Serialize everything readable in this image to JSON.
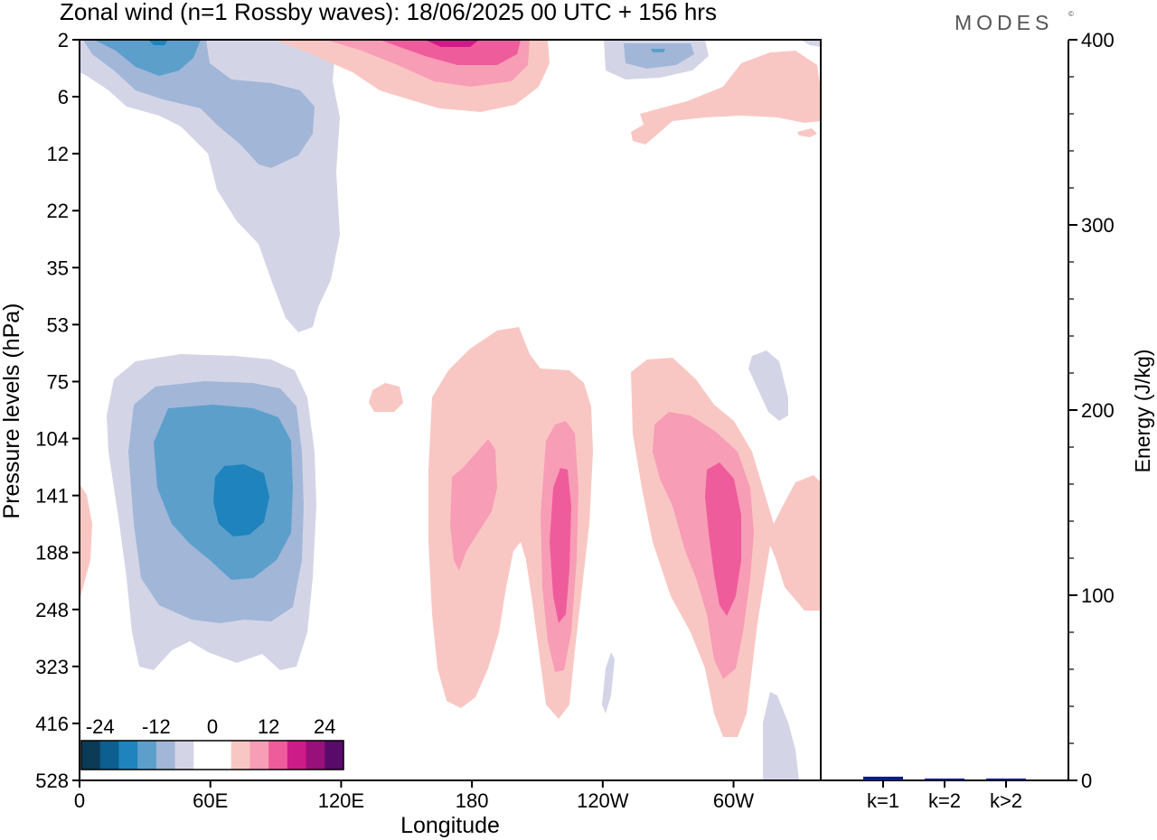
{
  "title": "Zonal wind (n=1 Rossby waves):  18/06/2025  00 UTC  + 156 hrs",
  "brand": "MODES",
  "brand_mark": "©",
  "chart_data": [
    {
      "type": "heatmap",
      "xlabel": "Longitude",
      "ylabel": "Pressure levels (hPa)",
      "x_ticks": [
        {
          "lon": 0,
          "label": "0"
        },
        {
          "lon": 60,
          "label": "60E"
        },
        {
          "lon": 120,
          "label": "120E"
        },
        {
          "lon": 180,
          "label": "180"
        },
        {
          "lon": 240,
          "label": "120W"
        },
        {
          "lon": 300,
          "label": "60W"
        }
      ],
      "xlim": [
        0,
        340
      ],
      "pressure_levels": [
        "2",
        "6",
        "12",
        "22",
        "35",
        "53",
        "75",
        "104",
        "141",
        "188",
        "248",
        "323",
        "416",
        "528"
      ],
      "y_scale": "ordinal pressure levels, 2 hPa at top",
      "colorbar": {
        "tick_labels": [
          "-24",
          "-12",
          "0",
          "12",
          "24"
        ],
        "colors": [
          "#0b3b56",
          "#0d5f8f",
          "#1f83bd",
          "#5c9fcb",
          "#a2b6d8",
          "#d3d5e7",
          "#ffffff",
          "#ffffff",
          "#f9c7c3",
          "#f79db6",
          "#ef5c9c",
          "#cd1b87",
          "#98107a",
          "#5a0a6a"
        ]
      },
      "regions": [
        {
          "value": -12,
          "note": "negative anomaly centred near 80E, 141 hPa (min about -18)"
        },
        {
          "value": -6,
          "note": "upper-level negative band 0-120E, 2-53 hPa"
        },
        {
          "value": 9,
          "note": "positive bands near 180-130W and 80W-40W, 75-416 hPa"
        },
        {
          "value": 15,
          "note": "positive maxima near 115W and 65W, 141-248 hPa"
        }
      ]
    },
    {
      "type": "bar",
      "ylabel": "Energy (J/kg)",
      "categories": [
        "k=1",
        "k=2",
        "k>2"
      ],
      "values": [
        2,
        1,
        1
      ],
      "ylim": [
        0,
        400
      ],
      "yticks": [
        0,
        100,
        200,
        300,
        400
      ],
      "bar_color": "#0a1a8c"
    }
  ]
}
